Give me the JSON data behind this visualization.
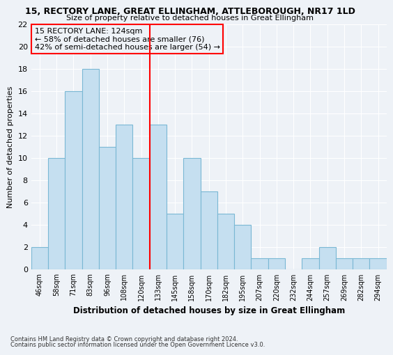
{
  "title": "15, RECTORY LANE, GREAT ELLINGHAM, ATTLEBOROUGH, NR17 1LD",
  "subtitle": "Size of property relative to detached houses in Great Ellingham",
  "xlabel": "Distribution of detached houses by size in Great Ellingham",
  "ylabel": "Number of detached properties",
  "bin_labels": [
    "46sqm",
    "58sqm",
    "71sqm",
    "83sqm",
    "96sqm",
    "108sqm",
    "120sqm",
    "133sqm",
    "145sqm",
    "158sqm",
    "170sqm",
    "182sqm",
    "195sqm",
    "207sqm",
    "220sqm",
    "232sqm",
    "244sqm",
    "257sqm",
    "269sqm",
    "282sqm",
    "294sqm"
  ],
  "counts": [
    2,
    10,
    16,
    18,
    11,
    13,
    10,
    13,
    5,
    10,
    7,
    5,
    4,
    1,
    1,
    0,
    1,
    2,
    1,
    1,
    1
  ],
  "bar_color": "#c5dff0",
  "bar_edgecolor": "#7ab8d4",
  "marker_bin_index": 6,
  "marker_line_color": "red",
  "annotation_title": "15 RECTORY LANE: 124sqm",
  "annotation_line1": "← 58% of detached houses are smaller (76)",
  "annotation_line2": "42% of semi-detached houses are larger (54) →",
  "annotation_box_edgecolor": "red",
  "ylim": [
    0,
    22
  ],
  "yticks": [
    0,
    2,
    4,
    6,
    8,
    10,
    12,
    14,
    16,
    18,
    20,
    22
  ],
  "footnote1": "Contains HM Land Registry data © Crown copyright and database right 2024.",
  "footnote2": "Contains public sector information licensed under the Open Government Licence v3.0.",
  "background_color": "#eef2f7"
}
